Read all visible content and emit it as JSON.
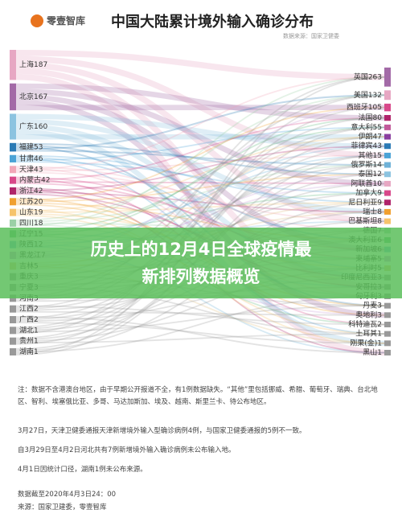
{
  "header": {
    "brand": "零壹智库",
    "title": "中国大陆累计境外输入确诊分布",
    "subtitle": "数据来源：国家卫健委"
  },
  "chart_data": {
    "type": "sankey",
    "left_nodes": [
      {
        "label": "上海187",
        "value": 187,
        "color": "#e7a7c3"
      },
      {
        "label": "北京167",
        "value": 167,
        "color": "#a36aa7"
      },
      {
        "label": "广东160",
        "value": 160,
        "color": "#8cc3e0"
      },
      {
        "label": "福建53",
        "value": 53,
        "color": "#2a7ab5"
      },
      {
        "label": "甘肃46",
        "value": 46,
        "color": "#4ba3d6"
      },
      {
        "label": "天津43",
        "value": 43,
        "color": "#f2a7b8"
      },
      {
        "label": "内蒙古42",
        "value": 42,
        "color": "#d8488a"
      },
      {
        "label": "浙江42",
        "value": 42,
        "color": "#b0246a"
      },
      {
        "label": "江苏20",
        "value": 20,
        "color": "#f0a030"
      },
      {
        "label": "山东19",
        "value": 19,
        "color": "#f6c36b"
      },
      {
        "label": "四川18",
        "value": 18,
        "color": "#9bd0a6"
      },
      {
        "label": "辽宁15",
        "value": 15,
        "color": "#5cb87a"
      },
      {
        "label": "陕西12",
        "value": 12,
        "color": "#6fb2d8"
      },
      {
        "label": "黑龙江7",
        "value": 7,
        "color": "#c9a0d6"
      },
      {
        "label": "吉林5",
        "value": 5,
        "color": "#e0c080"
      },
      {
        "label": "重庆3",
        "value": 3,
        "color": "#999999"
      },
      {
        "label": "宁夏3",
        "value": 3,
        "color": "#999999"
      },
      {
        "label": "河南3",
        "value": 3,
        "color": "#999999"
      },
      {
        "label": "江西2",
        "value": 2,
        "color": "#999999"
      },
      {
        "label": "广西2",
        "value": 2,
        "color": "#999999"
      },
      {
        "label": "湖北1",
        "value": 1,
        "color": "#999999"
      },
      {
        "label": "贵州1",
        "value": 1,
        "color": "#999999"
      },
      {
        "label": "湖南1",
        "value": 1,
        "color": "#999999"
      }
    ],
    "right_nodes": [
      {
        "label": "英国263",
        "value": 263,
        "color": "#a36aa7"
      },
      {
        "label": "美国132",
        "value": 132,
        "color": "#e7a7c3"
      },
      {
        "label": "西班牙105",
        "value": 105,
        "color": "#d8488a"
      },
      {
        "label": "法国80",
        "value": 80,
        "color": "#b0246a"
      },
      {
        "label": "意大利55",
        "value": 55,
        "color": "#c25a9a"
      },
      {
        "label": "伊朗47",
        "value": 47,
        "color": "#8a3fa0"
      },
      {
        "label": "菲律宾43",
        "value": 43,
        "color": "#2a7ab5"
      },
      {
        "label": "其他15",
        "value": 15,
        "color": "#4ba3d6"
      },
      {
        "label": "俄罗斯14",
        "value": 14,
        "color": "#6fb2d8"
      },
      {
        "label": "泰国12",
        "value": 12,
        "color": "#8cc3e0"
      },
      {
        "label": "阿联酋10",
        "value": 10,
        "color": "#e7a7c3"
      },
      {
        "label": "加拿大9",
        "value": 9,
        "color": "#d8488a"
      },
      {
        "label": "尼日利亚9",
        "value": 9,
        "color": "#b0246a"
      },
      {
        "label": "瑞士8",
        "value": 8,
        "color": "#f0a030"
      },
      {
        "label": "巴基斯坦8",
        "value": 8,
        "color": "#f6c36b"
      },
      {
        "label": "德国7",
        "value": 7,
        "color": "#9bd0a6"
      },
      {
        "label": "澳大利亚6",
        "value": 6,
        "color": "#5cb87a"
      },
      {
        "label": "新加坡6",
        "value": 6,
        "color": "#6fb2d8"
      },
      {
        "label": "柬埔寨5",
        "value": 5,
        "color": "#c9a0d6"
      },
      {
        "label": "比利时5",
        "value": 5,
        "color": "#e0c080"
      },
      {
        "label": "印度尼西亚3",
        "value": 3,
        "color": "#999999"
      },
      {
        "label": "安哥拉3",
        "value": 3,
        "color": "#999999"
      },
      {
        "label": "匈牙利3",
        "value": 3,
        "color": "#999999"
      },
      {
        "label": "丹麦3",
        "value": 3,
        "color": "#999999"
      },
      {
        "label": "奥地利3",
        "value": 3,
        "color": "#999999"
      },
      {
        "label": "科特迪瓦2",
        "value": 2,
        "color": "#999999"
      },
      {
        "label": "土耳其1",
        "value": 1,
        "color": "#999999"
      },
      {
        "label": "刚果(金)1",
        "value": 1,
        "color": "#999999"
      },
      {
        "label": "黑山1",
        "value": 1,
        "color": "#999999"
      }
    ]
  },
  "banner": {
    "lines": [
      "历史上的12月4日全球疫情最",
      "新排列数据概览"
    ]
  },
  "notes": [
    "注：数据不含港澳台地区，由于早期公开报道不全，有1例数据缺失。“其他”里包括挪威、希腊、葡萄牙、瑞典、台北地区、智利、埃塞俄比亚、多哥、马达加斯加、埃及、越南、斯里兰卡、待公布地区。",
    "3月27日，天津卫健委通报天津新增境外输入型确诊病例4例，与国家卫健委通报的5例不一致。",
    "自3月29日至4月2日河北共有7例新增境外输入确诊病例未公布输入地。",
    "4月1日因统计口径，湖南1例未公布来源。"
  ],
  "footer": [
    "数据截至2020年4月3日24：00",
    "来源：国家卫建委，零壹智库"
  ]
}
